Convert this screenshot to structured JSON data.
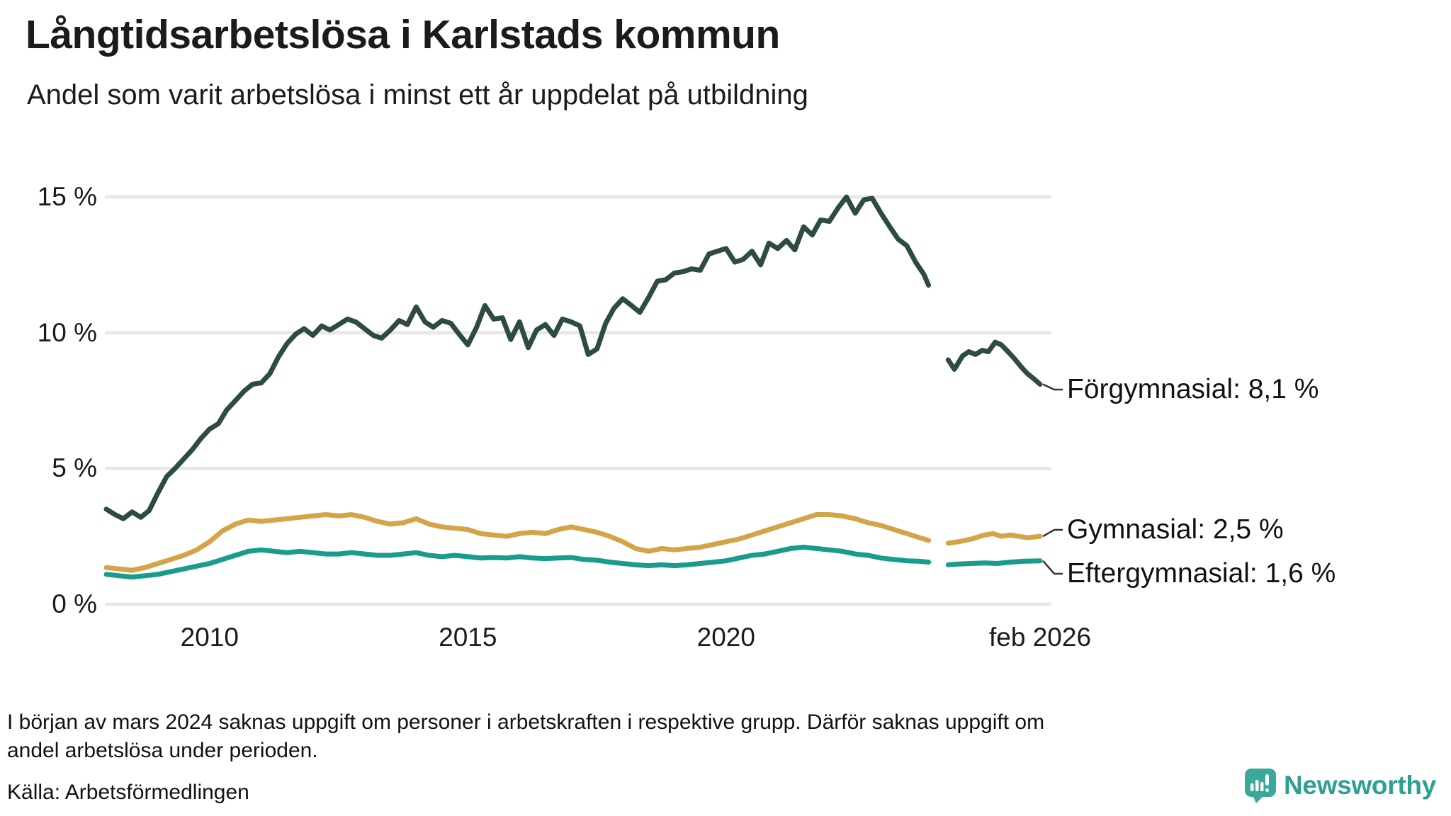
{
  "header": {
    "title": "Långtidsarbetslösa i Karlstads kommun",
    "subtitle": "Andel som varit arbetslösa i minst ett år uppdelat på utbildning"
  },
  "chart_data": {
    "type": "line",
    "title": "Långtidsarbetslösa i Karlstads kommun",
    "subtitle": "Andel som varit arbetslösa i minst ett år uppdelat på utbildning",
    "grid": true,
    "gridline_color": "#e8e8ea",
    "xlabel": "",
    "ylabel": "",
    "x_range": [
      2007.95,
      2026.3
    ],
    "ylim": [
      0,
      15
    ],
    "y_unit": "%",
    "y_ticks": [
      {
        "label": "15 %",
        "value": 15
      },
      {
        "label": "10 %",
        "value": 10
      },
      {
        "label": "5 %",
        "value": 5
      },
      {
        "label": "0 %",
        "value": 0
      }
    ],
    "x_ticks": [
      {
        "label": "2010",
        "year": 2010
      },
      {
        "label": "2015",
        "year": 2015
      },
      {
        "label": "2020",
        "year": 2020
      },
      {
        "label": "feb 2026",
        "year": 2026.08
      }
    ],
    "data_gap": {
      "from": 2023.95,
      "to": 2024.28,
      "reason": "uppgift saknas från början av mars 2024"
    },
    "series": [
      {
        "name": "Förgymnasial",
        "color": "#2d4a43",
        "end_label": "Förgymnasial: 8,1 %",
        "end_value_pct": 8.1,
        "points": [
          [
            2008.0,
            3.5
          ],
          [
            2008.17,
            3.3
          ],
          [
            2008.33,
            3.15
          ],
          [
            2008.5,
            3.4
          ],
          [
            2008.67,
            3.2
          ],
          [
            2008.83,
            3.45
          ],
          [
            2009.0,
            4.1
          ],
          [
            2009.17,
            4.7
          ],
          [
            2009.33,
            5.0
          ],
          [
            2009.5,
            5.35
          ],
          [
            2009.67,
            5.7
          ],
          [
            2009.83,
            6.1
          ],
          [
            2010.0,
            6.45
          ],
          [
            2010.17,
            6.65
          ],
          [
            2010.33,
            7.15
          ],
          [
            2010.5,
            7.5
          ],
          [
            2010.67,
            7.85
          ],
          [
            2010.83,
            8.1
          ],
          [
            2011.0,
            8.15
          ],
          [
            2011.17,
            8.5
          ],
          [
            2011.33,
            9.1
          ],
          [
            2011.5,
            9.6
          ],
          [
            2011.67,
            9.95
          ],
          [
            2011.83,
            10.15
          ],
          [
            2012.0,
            9.9
          ],
          [
            2012.17,
            10.25
          ],
          [
            2012.33,
            10.1
          ],
          [
            2012.5,
            10.3
          ],
          [
            2012.67,
            10.5
          ],
          [
            2012.83,
            10.4
          ],
          [
            2013.0,
            10.15
          ],
          [
            2013.17,
            9.9
          ],
          [
            2013.33,
            9.8
          ],
          [
            2013.5,
            10.1
          ],
          [
            2013.67,
            10.45
          ],
          [
            2013.83,
            10.3
          ],
          [
            2014.0,
            10.95
          ],
          [
            2014.17,
            10.4
          ],
          [
            2014.33,
            10.2
          ],
          [
            2014.5,
            10.45
          ],
          [
            2014.67,
            10.35
          ],
          [
            2014.83,
            9.95
          ],
          [
            2015.0,
            9.55
          ],
          [
            2015.17,
            10.2
          ],
          [
            2015.33,
            11.0
          ],
          [
            2015.5,
            10.5
          ],
          [
            2015.67,
            10.55
          ],
          [
            2015.83,
            9.75
          ],
          [
            2016.0,
            10.4
          ],
          [
            2016.17,
            9.45
          ],
          [
            2016.33,
            10.1
          ],
          [
            2016.5,
            10.3
          ],
          [
            2016.67,
            9.9
          ],
          [
            2016.83,
            10.5
          ],
          [
            2017.0,
            10.4
          ],
          [
            2017.17,
            10.25
          ],
          [
            2017.33,
            9.2
          ],
          [
            2017.5,
            9.4
          ],
          [
            2017.67,
            10.35
          ],
          [
            2017.83,
            10.9
          ],
          [
            2018.0,
            11.25
          ],
          [
            2018.17,
            11.0
          ],
          [
            2018.33,
            10.75
          ],
          [
            2018.5,
            11.3
          ],
          [
            2018.67,
            11.9
          ],
          [
            2018.83,
            11.95
          ],
          [
            2019.0,
            12.2
          ],
          [
            2019.17,
            12.25
          ],
          [
            2019.33,
            12.35
          ],
          [
            2019.5,
            12.3
          ],
          [
            2019.67,
            12.9
          ],
          [
            2019.83,
            13.0
          ],
          [
            2020.0,
            13.1
          ],
          [
            2020.17,
            12.6
          ],
          [
            2020.33,
            12.7
          ],
          [
            2020.5,
            13.0
          ],
          [
            2020.67,
            12.5
          ],
          [
            2020.83,
            13.3
          ],
          [
            2021.0,
            13.1
          ],
          [
            2021.17,
            13.4
          ],
          [
            2021.33,
            13.05
          ],
          [
            2021.5,
            13.9
          ],
          [
            2021.67,
            13.6
          ],
          [
            2021.83,
            14.15
          ],
          [
            2022.0,
            14.1
          ],
          [
            2022.17,
            14.6
          ],
          [
            2022.33,
            15.0
          ],
          [
            2022.5,
            14.4
          ],
          [
            2022.67,
            14.9
          ],
          [
            2022.83,
            14.95
          ],
          [
            2023.0,
            14.4
          ],
          [
            2023.17,
            13.9
          ],
          [
            2023.33,
            13.45
          ],
          [
            2023.5,
            13.2
          ],
          [
            2023.67,
            12.6
          ],
          [
            2023.83,
            12.15
          ],
          [
            2023.92,
            11.75
          ],
          null,
          [
            2024.3,
            9.0
          ],
          [
            2024.42,
            8.65
          ],
          [
            2024.58,
            9.15
          ],
          [
            2024.7,
            9.3
          ],
          [
            2024.83,
            9.2
          ],
          [
            2024.96,
            9.35
          ],
          [
            2025.08,
            9.3
          ],
          [
            2025.21,
            9.65
          ],
          [
            2025.33,
            9.55
          ],
          [
            2025.46,
            9.3
          ],
          [
            2025.58,
            9.05
          ],
          [
            2025.71,
            8.75
          ],
          [
            2025.83,
            8.5
          ],
          [
            2025.96,
            8.3
          ],
          [
            2026.08,
            8.1
          ]
        ]
      },
      {
        "name": "Gymnasial",
        "color": "#d4a449",
        "end_label": "Gymnasial: 2,5 %",
        "end_value_pct": 2.5,
        "points": [
          [
            2008.0,
            1.35
          ],
          [
            2008.25,
            1.3
          ],
          [
            2008.5,
            1.25
          ],
          [
            2008.75,
            1.35
          ],
          [
            2009.0,
            1.5
          ],
          [
            2009.25,
            1.65
          ],
          [
            2009.5,
            1.8
          ],
          [
            2009.75,
            2.0
          ],
          [
            2010.0,
            2.3
          ],
          [
            2010.25,
            2.7
          ],
          [
            2010.5,
            2.95
          ],
          [
            2010.75,
            3.1
          ],
          [
            2011.0,
            3.05
          ],
          [
            2011.25,
            3.1
          ],
          [
            2011.5,
            3.15
          ],
          [
            2011.75,
            3.2
          ],
          [
            2012.0,
            3.25
          ],
          [
            2012.25,
            3.3
          ],
          [
            2012.5,
            3.25
          ],
          [
            2012.75,
            3.3
          ],
          [
            2013.0,
            3.2
          ],
          [
            2013.25,
            3.05
          ],
          [
            2013.5,
            2.95
          ],
          [
            2013.75,
            3.0
          ],
          [
            2014.0,
            3.15
          ],
          [
            2014.25,
            2.95
          ],
          [
            2014.5,
            2.85
          ],
          [
            2014.75,
            2.8
          ],
          [
            2015.0,
            2.75
          ],
          [
            2015.25,
            2.6
          ],
          [
            2015.5,
            2.55
          ],
          [
            2015.75,
            2.5
          ],
          [
            2016.0,
            2.6
          ],
          [
            2016.25,
            2.65
          ],
          [
            2016.5,
            2.6
          ],
          [
            2016.75,
            2.75
          ],
          [
            2017.0,
            2.85
          ],
          [
            2017.25,
            2.75
          ],
          [
            2017.5,
            2.65
          ],
          [
            2017.75,
            2.5
          ],
          [
            2018.0,
            2.3
          ],
          [
            2018.25,
            2.05
          ],
          [
            2018.5,
            1.95
          ],
          [
            2018.75,
            2.05
          ],
          [
            2019.0,
            2.0
          ],
          [
            2019.25,
            2.05
          ],
          [
            2019.5,
            2.1
          ],
          [
            2019.75,
            2.2
          ],
          [
            2020.0,
            2.3
          ],
          [
            2020.25,
            2.4
          ],
          [
            2020.5,
            2.55
          ],
          [
            2020.75,
            2.7
          ],
          [
            2021.0,
            2.85
          ],
          [
            2021.25,
            3.0
          ],
          [
            2021.5,
            3.15
          ],
          [
            2021.75,
            3.3
          ],
          [
            2022.0,
            3.3
          ],
          [
            2022.25,
            3.25
          ],
          [
            2022.5,
            3.15
          ],
          [
            2022.75,
            3.0
          ],
          [
            2023.0,
            2.9
          ],
          [
            2023.25,
            2.75
          ],
          [
            2023.5,
            2.6
          ],
          [
            2023.75,
            2.45
          ],
          [
            2023.92,
            2.35
          ],
          null,
          [
            2024.3,
            2.25
          ],
          [
            2024.5,
            2.3
          ],
          [
            2024.75,
            2.4
          ],
          [
            2025.0,
            2.55
          ],
          [
            2025.17,
            2.6
          ],
          [
            2025.33,
            2.5
          ],
          [
            2025.5,
            2.55
          ],
          [
            2025.67,
            2.5
          ],
          [
            2025.83,
            2.45
          ],
          [
            2026.08,
            2.5
          ]
        ]
      },
      {
        "name": "Eftergymnasial",
        "color": "#1a9c8c",
        "end_label": "Eftergymnasial: 1,6 %",
        "end_value_pct": 1.6,
        "points": [
          [
            2008.0,
            1.1
          ],
          [
            2008.25,
            1.05
          ],
          [
            2008.5,
            1.0
          ],
          [
            2008.75,
            1.05
          ],
          [
            2009.0,
            1.1
          ],
          [
            2009.25,
            1.2
          ],
          [
            2009.5,
            1.3
          ],
          [
            2009.75,
            1.4
          ],
          [
            2010.0,
            1.5
          ],
          [
            2010.25,
            1.65
          ],
          [
            2010.5,
            1.8
          ],
          [
            2010.75,
            1.95
          ],
          [
            2011.0,
            2.0
          ],
          [
            2011.25,
            1.95
          ],
          [
            2011.5,
            1.9
          ],
          [
            2011.75,
            1.95
          ],
          [
            2012.0,
            1.9
          ],
          [
            2012.25,
            1.85
          ],
          [
            2012.5,
            1.85
          ],
          [
            2012.75,
            1.9
          ],
          [
            2013.0,
            1.85
          ],
          [
            2013.25,
            1.8
          ],
          [
            2013.5,
            1.8
          ],
          [
            2013.75,
            1.85
          ],
          [
            2014.0,
            1.9
          ],
          [
            2014.25,
            1.8
          ],
          [
            2014.5,
            1.75
          ],
          [
            2014.75,
            1.8
          ],
          [
            2015.0,
            1.75
          ],
          [
            2015.25,
            1.7
          ],
          [
            2015.5,
            1.72
          ],
          [
            2015.75,
            1.7
          ],
          [
            2016.0,
            1.75
          ],
          [
            2016.25,
            1.7
          ],
          [
            2016.5,
            1.68
          ],
          [
            2016.75,
            1.7
          ],
          [
            2017.0,
            1.72
          ],
          [
            2017.25,
            1.65
          ],
          [
            2017.5,
            1.62
          ],
          [
            2017.75,
            1.55
          ],
          [
            2018.0,
            1.5
          ],
          [
            2018.25,
            1.45
          ],
          [
            2018.5,
            1.42
          ],
          [
            2018.75,
            1.45
          ],
          [
            2019.0,
            1.42
          ],
          [
            2019.25,
            1.45
          ],
          [
            2019.5,
            1.5
          ],
          [
            2019.75,
            1.55
          ],
          [
            2020.0,
            1.6
          ],
          [
            2020.25,
            1.7
          ],
          [
            2020.5,
            1.8
          ],
          [
            2020.75,
            1.85
          ],
          [
            2021.0,
            1.95
          ],
          [
            2021.25,
            2.05
          ],
          [
            2021.5,
            2.1
          ],
          [
            2021.75,
            2.05
          ],
          [
            2022.0,
            2.0
          ],
          [
            2022.25,
            1.95
          ],
          [
            2022.5,
            1.85
          ],
          [
            2022.75,
            1.8
          ],
          [
            2023.0,
            1.7
          ],
          [
            2023.25,
            1.65
          ],
          [
            2023.5,
            1.6
          ],
          [
            2023.75,
            1.58
          ],
          [
            2023.92,
            1.55
          ],
          null,
          [
            2024.3,
            1.45
          ],
          [
            2024.5,
            1.48
          ],
          [
            2024.75,
            1.5
          ],
          [
            2025.0,
            1.52
          ],
          [
            2025.25,
            1.5
          ],
          [
            2025.5,
            1.55
          ],
          [
            2025.75,
            1.58
          ],
          [
            2026.08,
            1.6
          ]
        ]
      }
    ]
  },
  "footnote": {
    "line1": "I början av mars 2024 saknas uppgift om personer i arbetskraften i respektive grupp. Därför saknas uppgift om",
    "line2": "andel arbetslösa under perioden."
  },
  "source": {
    "label": "Källa: Arbetsförmedlingen"
  },
  "logo": {
    "text": "Newsworthy",
    "text_color": "#2ea092",
    "icon_color": "#3aa99c",
    "icon": "newsworthy-speech-bubble-bar-chart-icon"
  }
}
